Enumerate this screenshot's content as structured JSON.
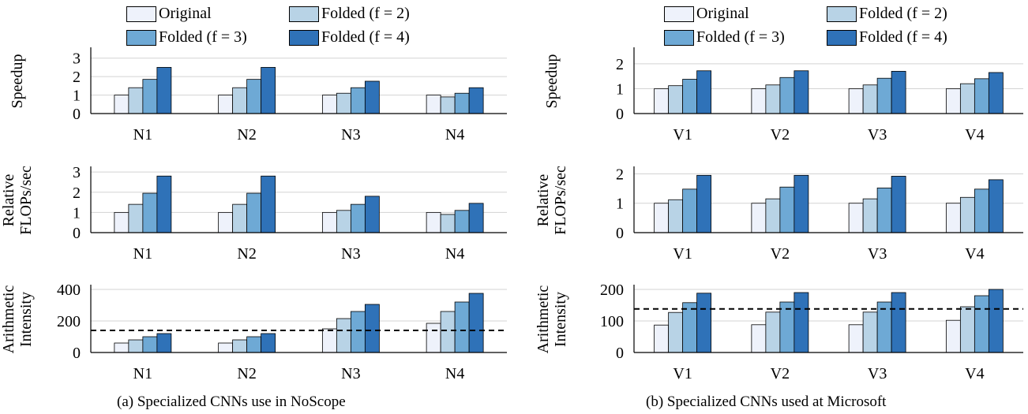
{
  "legend": {
    "entries": [
      "Original",
      "Folded (f = 2)",
      "Folded (f = 3)",
      "Folded (f = 4)"
    ],
    "colors": [
      "#eef2fb",
      "#b8d3e6",
      "#6ea9d5",
      "#2f72b8"
    ]
  },
  "captions": {
    "left": "(a) Specialized CNNs use in NoScope",
    "right": "(b) Specialized CNNs used at Microsoft"
  },
  "chart_data": [
    {
      "type": "bar",
      "panel": "a",
      "row": "speedup",
      "ylabel": [
        "Speedup"
      ],
      "categories": [
        "N1",
        "N2",
        "N3",
        "N4"
      ],
      "yticks": [
        0,
        1,
        2,
        3
      ],
      "ylim": [
        0,
        3.5
      ],
      "series": [
        {
          "name": "Original",
          "values": [
            1,
            1,
            1,
            1
          ]
        },
        {
          "name": "Folded (f = 2)",
          "values": [
            1.4,
            1.4,
            1.1,
            0.9
          ]
        },
        {
          "name": "Folded (f = 3)",
          "values": [
            1.85,
            1.85,
            1.4,
            1.1
          ]
        },
        {
          "name": "Folded (f = 4)",
          "values": [
            2.5,
            2.5,
            1.75,
            1.4
          ]
        }
      ]
    },
    {
      "type": "bar",
      "panel": "a",
      "row": "flops",
      "ylabel": [
        "Relative",
        "FLOPs/sec"
      ],
      "categories": [
        "N1",
        "N2",
        "N3",
        "N4"
      ],
      "yticks": [
        0,
        1,
        2,
        3
      ],
      "ylim": [
        0,
        3.2
      ],
      "series": [
        {
          "name": "Original",
          "values": [
            1,
            1,
            1,
            1
          ]
        },
        {
          "name": "Folded (f = 2)",
          "values": [
            1.4,
            1.4,
            1.1,
            0.9
          ]
        },
        {
          "name": "Folded (f = 3)",
          "values": [
            1.95,
            1.95,
            1.4,
            1.1
          ]
        },
        {
          "name": "Folded (f = 4)",
          "values": [
            2.8,
            2.8,
            1.8,
            1.45
          ]
        }
      ]
    },
    {
      "type": "bar",
      "panel": "a",
      "row": "intensity",
      "ylabel": [
        "Arithmetic",
        "Intensity"
      ],
      "categories": [
        "N1",
        "N2",
        "N3",
        "N4"
      ],
      "yticks": [
        0,
        200,
        400
      ],
      "ylim": [
        0,
        420
      ],
      "threshold": 140,
      "series": [
        {
          "name": "Original",
          "values": [
            60,
            60,
            150,
            185
          ]
        },
        {
          "name": "Folded (f = 2)",
          "values": [
            80,
            80,
            215,
            260
          ]
        },
        {
          "name": "Folded (f = 3)",
          "values": [
            100,
            100,
            260,
            320
          ]
        },
        {
          "name": "Folded (f = 4)",
          "values": [
            120,
            120,
            305,
            375
          ]
        }
      ]
    },
    {
      "type": "bar",
      "panel": "b",
      "row": "speedup",
      "ylabel": [
        "Speedup"
      ],
      "categories": [
        "V1",
        "V2",
        "V3",
        "V4"
      ],
      "yticks": [
        0,
        1,
        2
      ],
      "ylim": [
        0,
        2.6
      ],
      "series": [
        {
          "name": "Original",
          "values": [
            1,
            1,
            1,
            1
          ]
        },
        {
          "name": "Folded (f = 2)",
          "values": [
            1.12,
            1.15,
            1.15,
            1.2
          ]
        },
        {
          "name": "Folded (f = 3)",
          "values": [
            1.38,
            1.45,
            1.42,
            1.4
          ]
        },
        {
          "name": "Folded (f = 4)",
          "values": [
            1.72,
            1.72,
            1.7,
            1.65
          ]
        }
      ]
    },
    {
      "type": "bar",
      "panel": "b",
      "row": "flops",
      "ylabel": [
        "Relative",
        "FLOPs/sec"
      ],
      "categories": [
        "V1",
        "V2",
        "V3",
        "V4"
      ],
      "yticks": [
        0,
        1,
        2
      ],
      "ylim": [
        0,
        2.2
      ],
      "series": [
        {
          "name": "Original",
          "values": [
            1,
            1,
            1,
            1
          ]
        },
        {
          "name": "Folded (f = 2)",
          "values": [
            1.12,
            1.15,
            1.15,
            1.2
          ]
        },
        {
          "name": "Folded (f = 3)",
          "values": [
            1.48,
            1.55,
            1.52,
            1.48
          ]
        },
        {
          "name": "Folded (f = 4)",
          "values": [
            1.95,
            1.95,
            1.92,
            1.8
          ]
        }
      ]
    },
    {
      "type": "bar",
      "panel": "b",
      "row": "intensity",
      "ylabel": [
        "Arithmetic",
        "Intensity"
      ],
      "categories": [
        "V1",
        "V2",
        "V3",
        "V4"
      ],
      "yticks": [
        0,
        100,
        200
      ],
      "ylim": [
        0,
        210
      ],
      "threshold": 138,
      "series": [
        {
          "name": "Original",
          "values": [
            87,
            88,
            88,
            102
          ]
        },
        {
          "name": "Folded (f = 2)",
          "values": [
            127,
            128,
            128,
            145
          ]
        },
        {
          "name": "Folded (f = 3)",
          "values": [
            158,
            160,
            160,
            180
          ]
        },
        {
          "name": "Folded (f = 4)",
          "values": [
            188,
            190,
            190,
            200
          ]
        }
      ]
    }
  ]
}
